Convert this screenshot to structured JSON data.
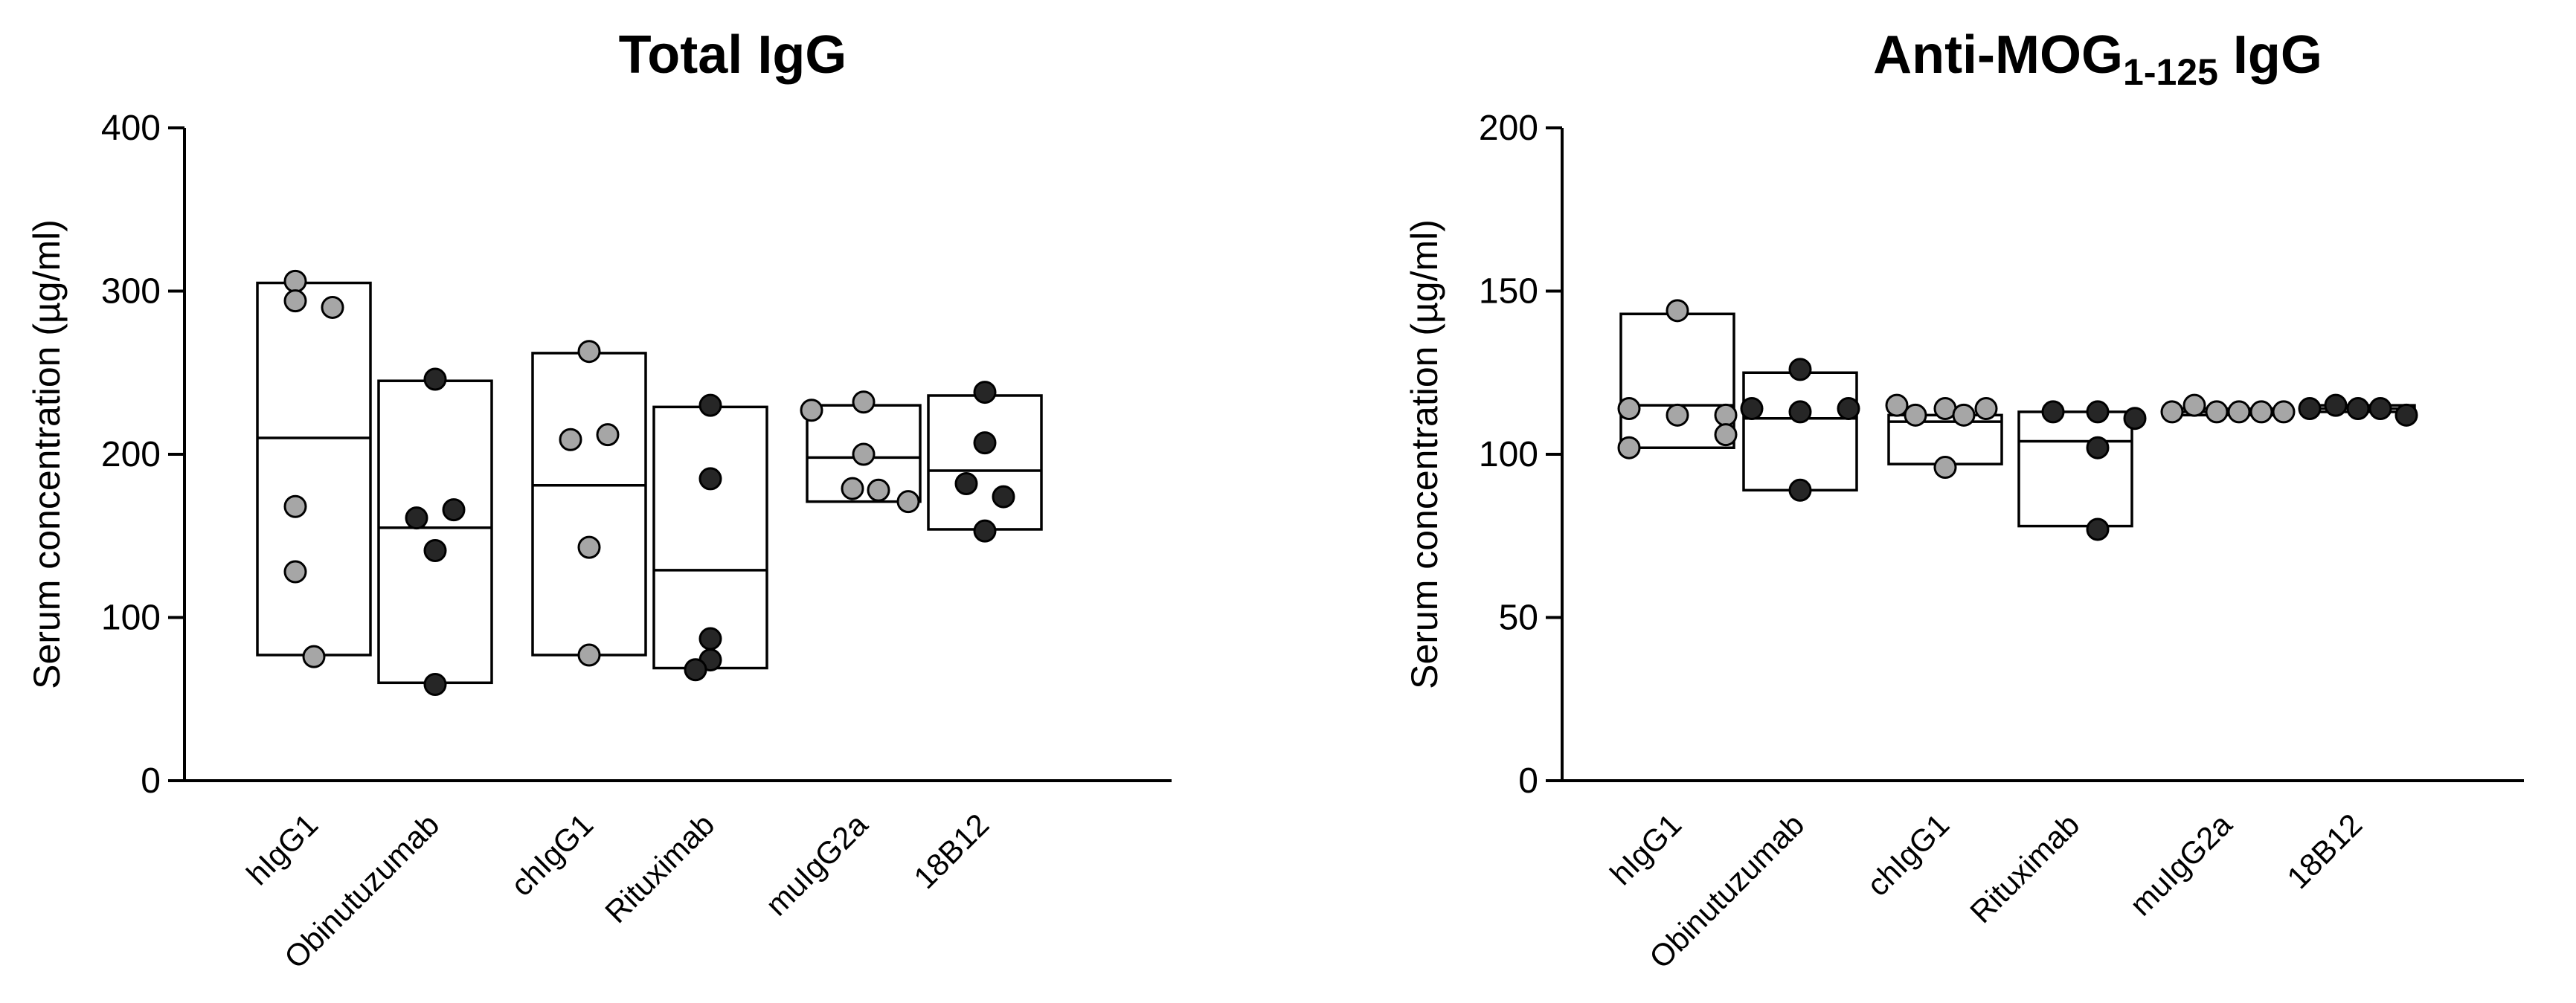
{
  "chart_data": [
    {
      "type": "box",
      "title": "Total IgG",
      "title_subscript": "",
      "title_suffix": "",
      "ylabel": "Serum concentration (µg/ml)",
      "ylim": [
        0,
        400
      ],
      "yticks": [
        0,
        100,
        200,
        300,
        400
      ],
      "categories": [
        "hIgG1",
        "Obinutuzumab",
        "chIgG1",
        "Rituximab",
        "muIgG2a",
        "18B12"
      ],
      "point_colors": [
        "#a6a6a6",
        "#262626",
        "#a6a6a6",
        "#262626",
        "#a6a6a6",
        "#262626"
      ],
      "groups": [
        {
          "name": "hIgG1",
          "min": 77,
          "max": 305,
          "mean": 210,
          "points": [
            306,
            294,
            290,
            168,
            128,
            76
          ]
        },
        {
          "name": "Obinutuzumab",
          "min": 60,
          "max": 245,
          "mean": 155,
          "points": [
            246,
            161,
            166,
            141,
            59
          ]
        },
        {
          "name": "chIgG1",
          "min": 77,
          "max": 262,
          "mean": 181,
          "points": [
            263,
            209,
            212,
            143,
            77
          ]
        },
        {
          "name": "Rituximab",
          "min": 69,
          "max": 229,
          "mean": 129,
          "points": [
            230,
            185,
            87,
            74,
            68
          ]
        },
        {
          "name": "muIgG2a",
          "min": 171,
          "max": 230,
          "mean": 198,
          "points": [
            227,
            232,
            200,
            179,
            178,
            171
          ]
        },
        {
          "name": "18B12",
          "min": 154,
          "max": 236,
          "mean": 190,
          "points": [
            238,
            207,
            182,
            174,
            153
          ]
        }
      ]
    },
    {
      "type": "box",
      "title": "Anti-MOG",
      "title_subscript": "1-125",
      "title_suffix": " IgG",
      "ylabel": "Serum concentration (µg/ml)",
      "ylim": [
        0,
        200
      ],
      "yticks": [
        0,
        50,
        100,
        150,
        200
      ],
      "categories": [
        "hIgG1",
        "Obinutuzumab",
        "chIgG1",
        "Rituximab",
        "muIgG2a",
        "18B12"
      ],
      "point_colors": [
        "#a6a6a6",
        "#262626",
        "#a6a6a6",
        "#262626",
        "#a6a6a6",
        "#262626"
      ],
      "groups": [
        {
          "name": "hIgG1",
          "min": 102,
          "max": 143,
          "mean": 115,
          "points": [
            144,
            114,
            112,
            112,
            106,
            102
          ]
        },
        {
          "name": "Obinutuzumab",
          "min": 89,
          "max": 125,
          "mean": 111,
          "points": [
            126,
            114,
            113,
            114,
            89
          ]
        },
        {
          "name": "chIgG1",
          "min": 97,
          "max": 112,
          "mean": 110,
          "points": [
            115,
            112,
            114,
            112,
            114,
            96
          ]
        },
        {
          "name": "Rituximab",
          "min": 78,
          "max": 113,
          "mean": 104,
          "points": [
            113,
            113,
            102,
            111,
            77
          ]
        },
        {
          "name": "muIgG2a",
          "min": 112,
          "max": 114,
          "mean": 113,
          "points": [
            113,
            115,
            113,
            113,
            113,
            113
          ]
        },
        {
          "name": "18B12",
          "min": 113,
          "max": 115,
          "mean": 114,
          "points": [
            114,
            115,
            114,
            114,
            112
          ]
        }
      ]
    }
  ]
}
